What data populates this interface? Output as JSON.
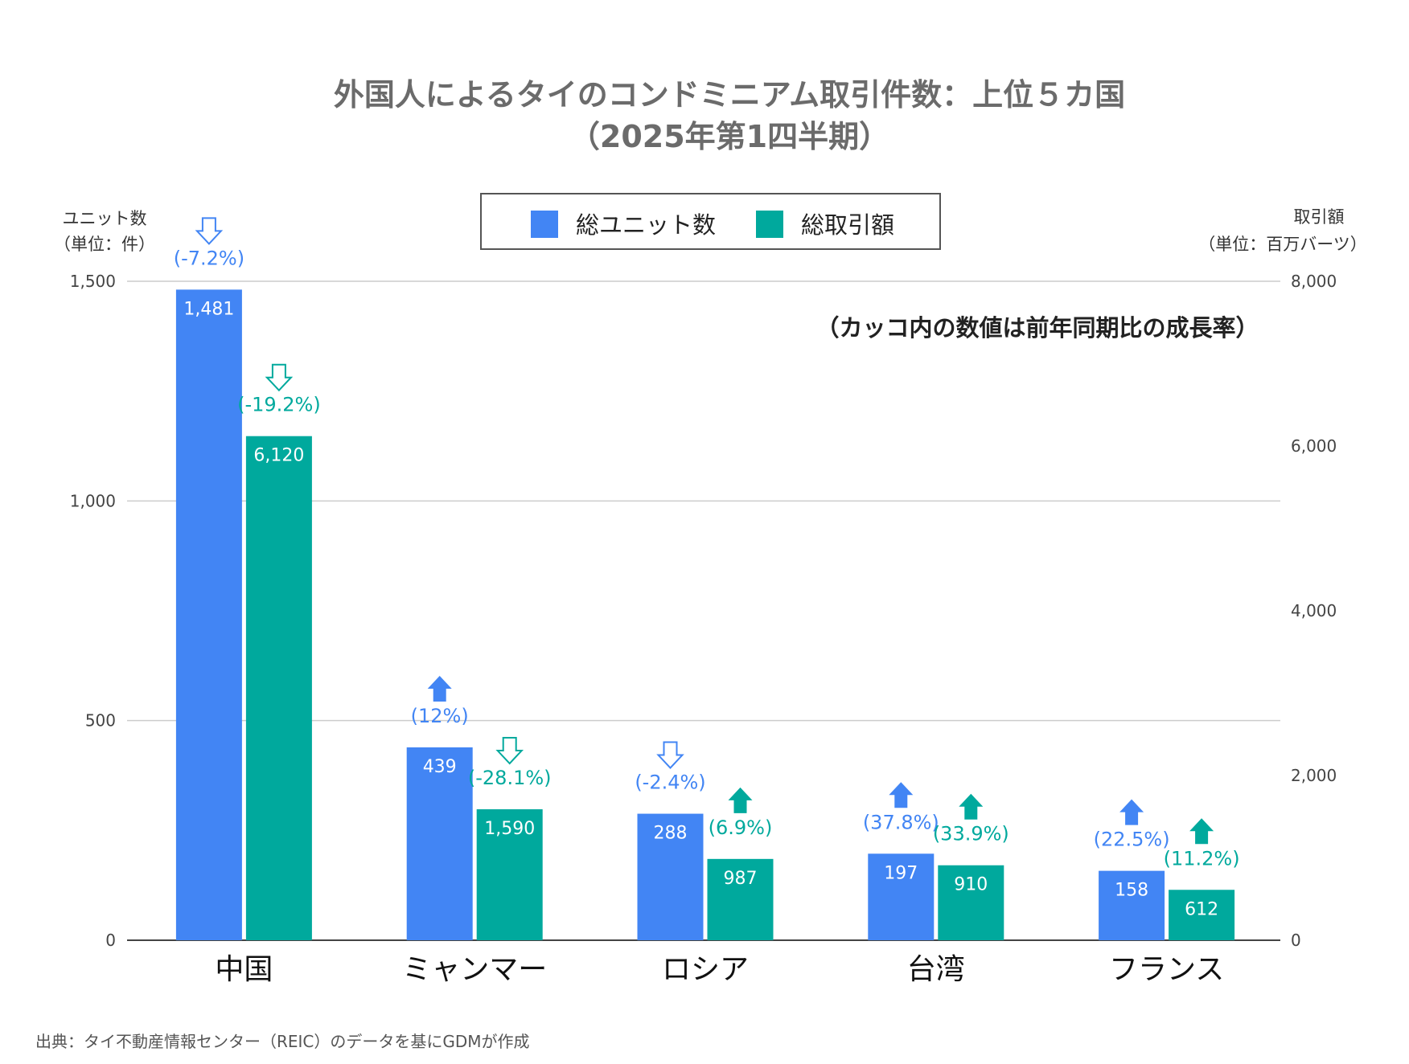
{
  "colors": {
    "units": "#4285f4",
    "amount": "#00a99d",
    "grid": "#cccccc",
    "axis": "#555555"
  },
  "chart_data": {
    "type": "bar",
    "title_line1": "外国人によるタイのコンドミニアム取引件数：上位５カ国",
    "title_line2": "（2025年第1四半期）",
    "left_axis_title_line1": "ユニット数",
    "left_axis_title_line2": "（単位：件）",
    "right_axis_title_line1": "取引額",
    "right_axis_title_line2": "（単位：百万バーツ）",
    "left_ylim": [
      0,
      1500
    ],
    "right_ylim": [
      0,
      8000
    ],
    "left_ticks": [
      "0",
      "500",
      "1,000",
      "1,500"
    ],
    "left_tick_values": [
      0,
      500,
      1000,
      1500
    ],
    "right_ticks": [
      "0",
      "2,000",
      "4,000",
      "6,000",
      "8,000"
    ],
    "right_tick_values": [
      0,
      2000,
      4000,
      6000,
      8000
    ],
    "grid": true,
    "legend_position": "top-center",
    "categories": [
      "中国",
      "ミャンマー",
      "ロシア",
      "台湾",
      "フランス"
    ],
    "series": [
      {
        "name": "総ユニット数",
        "axis": "left",
        "values": [
          1481,
          439,
          288,
          197,
          158
        ],
        "labels": [
          "1,481",
          "439",
          "288",
          "197",
          "158"
        ],
        "growth": [
          "(-7.2%)",
          "(12%)",
          "(-2.4%)",
          "(37.8%)",
          "(22.5%)"
        ],
        "growth_dir": [
          "down",
          "up",
          "down",
          "up",
          "up"
        ]
      },
      {
        "name": "総取引額",
        "axis": "right",
        "values": [
          6120,
          1590,
          987,
          910,
          612
        ],
        "labels": [
          "6,120",
          "1,590",
          "987",
          "910",
          "612"
        ],
        "growth": [
          "(-19.2%)",
          "(-28.1%)",
          "(6.9%)",
          "(33.9%)",
          "(11.2%)"
        ],
        "growth_dir": [
          "down",
          "down",
          "up",
          "up",
          "up"
        ]
      }
    ],
    "annotation": "（カッコ内の数値は前年同期比の成長率）"
  },
  "source": "出典：タイ不動産情報センター（REIC）のデータを基にGDMが作成"
}
